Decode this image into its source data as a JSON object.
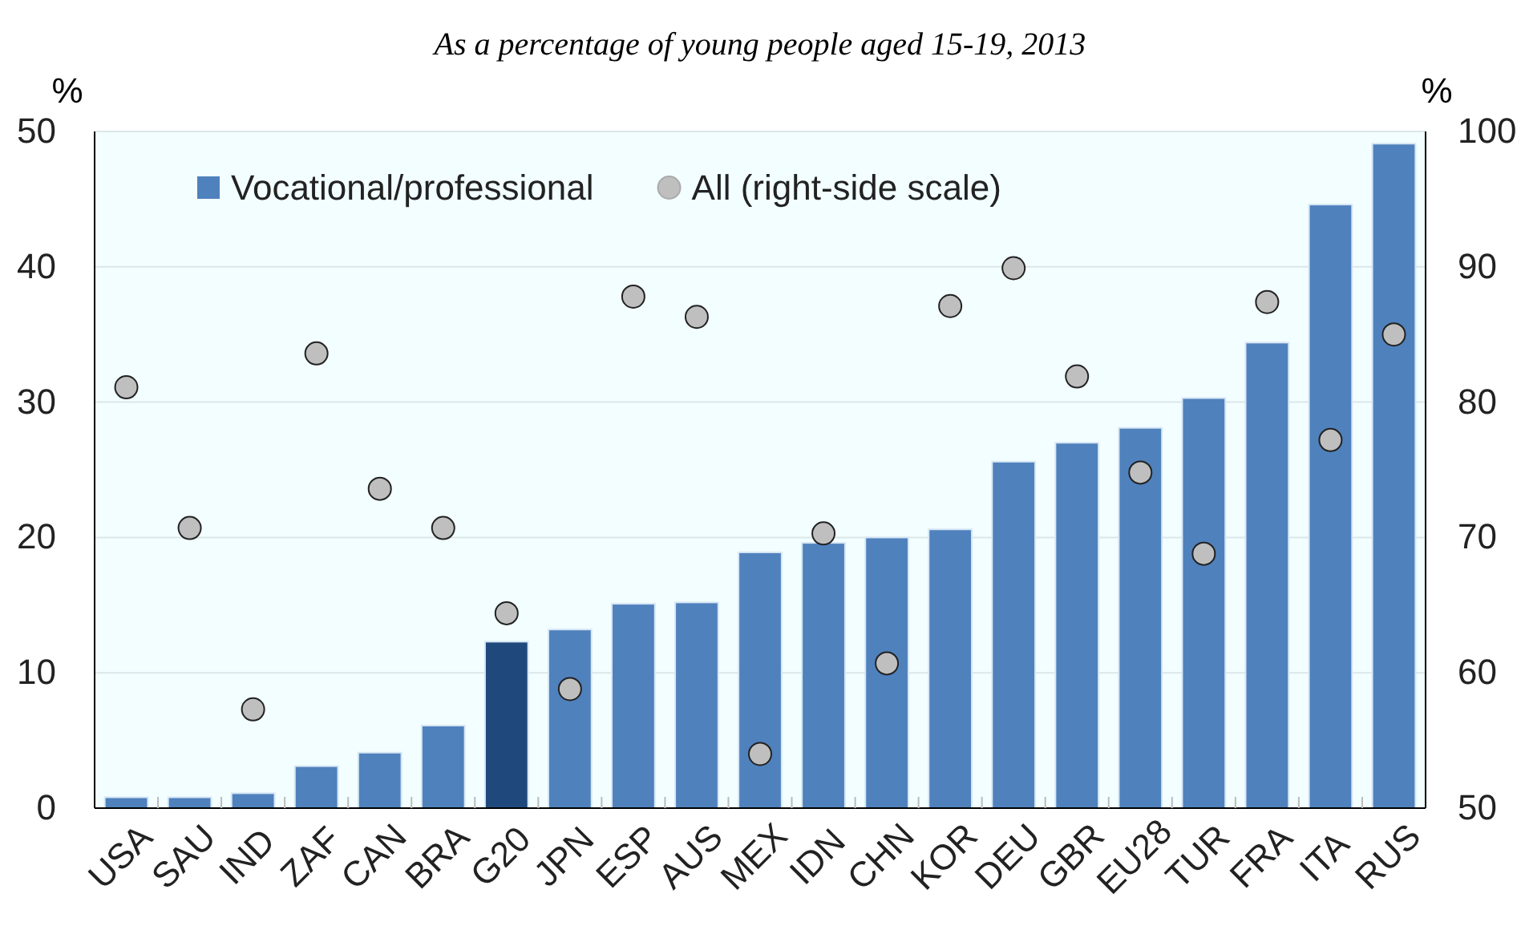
{
  "chart_data": {
    "type": "bar",
    "title": "As a percentage of young people aged 15-19, 2013",
    "ylabel": "%",
    "y2label": "%",
    "categories": [
      "USA",
      "SAU",
      "IND",
      "ZAF",
      "CAN",
      "BRA",
      "G20",
      "JPN",
      "ESP",
      "AUS",
      "MEX",
      "IDN",
      "CHN",
      "KOR",
      "DEU",
      "GBR",
      "EU28",
      "TUR",
      "FRA",
      "ITA",
      "RUS"
    ],
    "series": [
      {
        "name": "Vocational/professional",
        "color": "#4f81bd",
        "colors": [
          "#4f81bd",
          "#4f81bd",
          "#4f81bd",
          "#4f81bd",
          "#4f81bd",
          "#4f81bd",
          "#1f497d",
          "#4f81bd",
          "#4f81bd",
          "#4f81bd",
          "#4f81bd",
          "#4f81bd",
          "#4f81bd",
          "#4f81bd",
          "#4f81bd",
          "#4f81bd",
          "#4f81bd",
          "#4f81bd",
          "#4f81bd",
          "#4f81bd",
          "#4f81bd"
        ],
        "values": [
          0.8,
          0.8,
          1.1,
          3.1,
          4.1,
          6.1,
          12.3,
          13.2,
          15.1,
          15.2,
          18.9,
          19.6,
          20.0,
          20.6,
          25.6,
          27.0,
          28.1,
          30.3,
          34.4,
          44.6,
          49.1
        ]
      },
      {
        "name": "All (right-side scale)",
        "type": "scatter",
        "axis": "y2",
        "marker": "circle",
        "color": "#bfbfbf",
        "values": [
          81.1,
          70.7,
          57.3,
          83.6,
          73.6,
          70.7,
          64.4,
          58.8,
          87.8,
          86.3,
          54.0,
          70.3,
          60.7,
          87.1,
          89.9,
          81.9,
          74.8,
          68.8,
          87.4,
          77.2,
          85.0
        ]
      }
    ],
    "ylim": [
      0,
      50
    ],
    "yticks": [
      0,
      10,
      20,
      30,
      40,
      50
    ],
    "y2lim": [
      50,
      100
    ],
    "y2ticks": [
      50,
      60,
      70,
      80,
      90,
      100
    ],
    "grid": "y",
    "legend": "top left"
  }
}
